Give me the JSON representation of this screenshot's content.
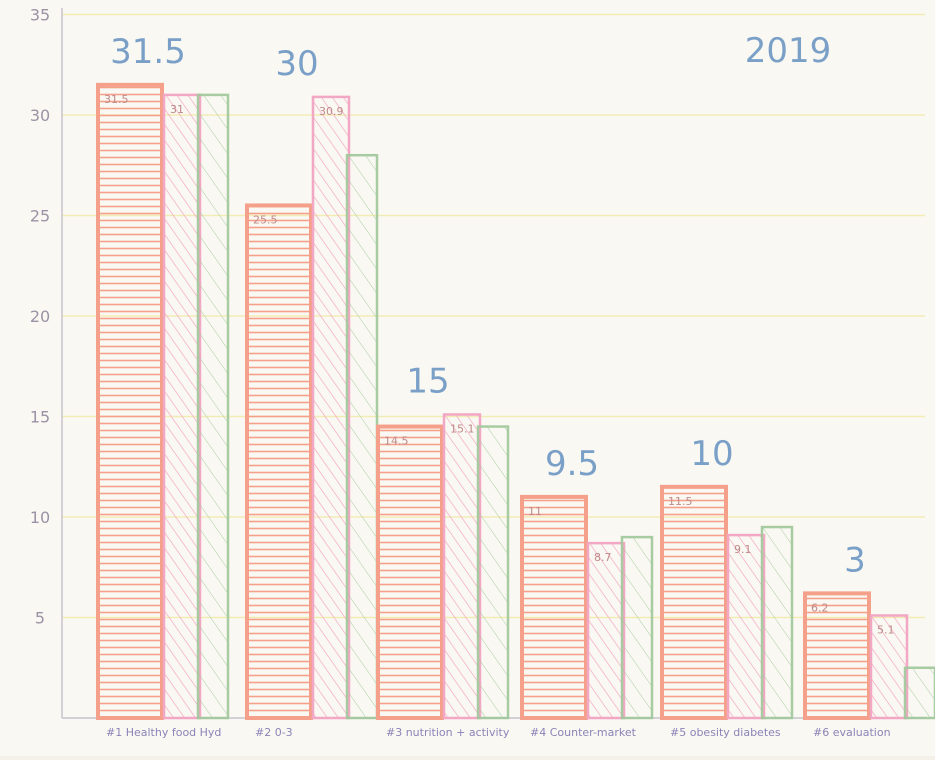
{
  "chart_data": {
    "type": "bar",
    "title": "2019",
    "ylim": [
      0,
      35
    ],
    "yticks": [
      "5",
      "10",
      "15",
      "20",
      "25",
      "30",
      "35"
    ],
    "grid": true,
    "categories": [
      "#1 Healthy food Hyd",
      "#2 0-3",
      "#3 nutrition + activity",
      "#4 Counter-market",
      "#5 obesity diabetes",
      "#6 evaluation"
    ],
    "series": [
      {
        "values": [
          31.5,
          25.5,
          14.5,
          11,
          11.5,
          6.2
        ],
        "color": "#f4a08a",
        "labels": [
          "31.5",
          "25.5",
          "14.5",
          "11",
          "11.5",
          "6.2"
        ]
      },
      {
        "values": [
          31,
          30.9,
          15.1,
          8.7,
          9.1,
          5.1
        ],
        "color": "#f2a8c4",
        "labels": [
          "31",
          "30.9",
          "15.1",
          "8.7",
          "9.1",
          "5.1"
        ]
      },
      {
        "values": [
          31,
          28,
          14.5,
          9,
          9.5,
          2.5
        ],
        "color": "#a0c89a"
      }
    ],
    "annotations": [
      "31.5",
      "30",
      "15",
      "9.5",
      "10",
      "3"
    ]
  }
}
